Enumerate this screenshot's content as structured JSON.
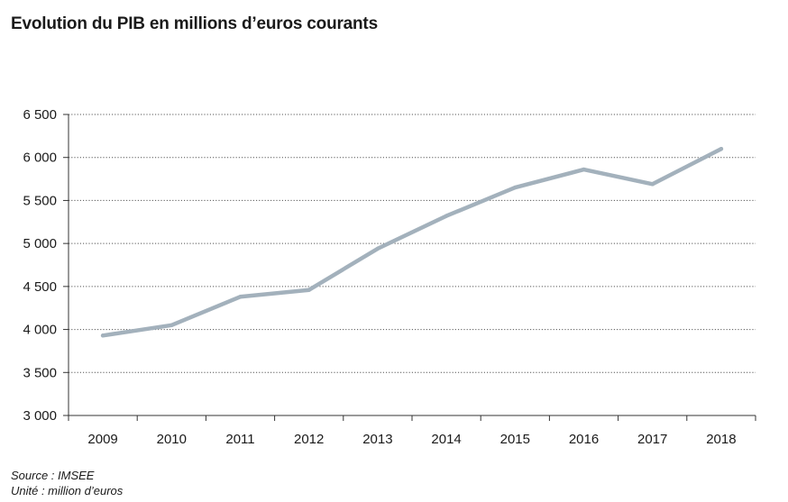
{
  "chart_data": {
    "type": "line",
    "title": "Evolution du PIB en millions d’euros courants",
    "xlabel": "",
    "ylabel": "",
    "x": [
      2009,
      2010,
      2011,
      2012,
      2013,
      2014,
      2015,
      2016,
      2017,
      2018
    ],
    "x_tick_labels": [
      "2009",
      "2010",
      "2011",
      "2012",
      "2013",
      "2014",
      "2015",
      "2016",
      "2017",
      "2018"
    ],
    "ylim": [
      3000,
      6500
    ],
    "y_ticks": [
      3000,
      3500,
      4000,
      4500,
      5000,
      5500,
      6000,
      6500
    ],
    "y_tick_labels": [
      "3 000",
      "3 500",
      "4 000",
      "4 500",
      "5 000",
      "5 500",
      "6 000",
      "6 500"
    ],
    "grid": "horizontal-dotted",
    "legend": "none",
    "series": [
      {
        "values": [
          3930,
          4050,
          4380,
          4460,
          4940,
          5320,
          5650,
          5860,
          5690,
          6100
        ],
        "color": "#a3b1bc"
      }
    ]
  },
  "notes": {
    "source": "Source : IMSEE",
    "unit": "Unité : million d’euros"
  },
  "colors": {
    "gridline": "#555555",
    "axis": "#333333",
    "text": "#1a1a1a"
  }
}
